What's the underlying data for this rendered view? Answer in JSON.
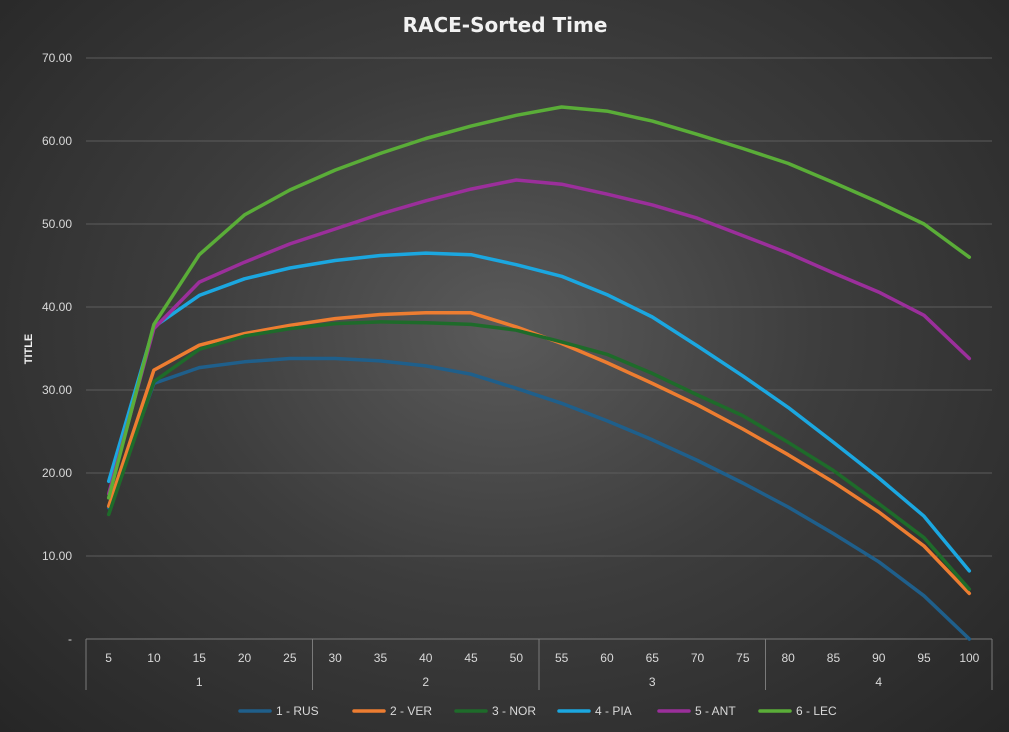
{
  "chart_data": {
    "type": "line",
    "title": "RACE-Sorted Time",
    "ylabel": "TITLE",
    "xlabel": "",
    "ylim": [
      0,
      70
    ],
    "yticks": [
      {
        "value": 0,
        "label": "-"
      },
      {
        "value": 10,
        "label": "10.00"
      },
      {
        "value": 20,
        "label": "20.00"
      },
      {
        "value": 30,
        "label": "30.00"
      },
      {
        "value": 40,
        "label": "40.00"
      },
      {
        "value": 50,
        "label": "50.00"
      },
      {
        "value": 60,
        "label": "60.00"
      },
      {
        "value": 70,
        "label": "70.00"
      }
    ],
    "grid": true,
    "legend_position": "bottom",
    "categories": [
      "5",
      "10",
      "15",
      "20",
      "25",
      "30",
      "35",
      "40",
      "45",
      "50",
      "55",
      "60",
      "65",
      "70",
      "75",
      "80",
      "85",
      "90",
      "95",
      "100"
    ],
    "groups": [
      {
        "label": "1",
        "count": 5
      },
      {
        "label": "2",
        "count": 5
      },
      {
        "label": "3",
        "count": 5
      },
      {
        "label": "4",
        "count": 5
      }
    ],
    "series": [
      {
        "name": "1 - RUS",
        "color": "#1f5f8b",
        "values": [
          15.8,
          30.8,
          32.7,
          33.4,
          33.8,
          33.8,
          33.5,
          32.9,
          31.9,
          30.2,
          28.4,
          26.3,
          24.0,
          21.5,
          18.8,
          15.9,
          12.7,
          9.3,
          5.2,
          0.0
        ]
      },
      {
        "name": "2 - VER",
        "color": "#ed7d31",
        "values": [
          16.0,
          32.4,
          35.4,
          36.8,
          37.8,
          38.6,
          39.1,
          39.3,
          39.3,
          37.6,
          35.6,
          33.3,
          30.8,
          28.2,
          25.3,
          22.2,
          18.9,
          15.3,
          11.2,
          5.5
        ]
      },
      {
        "name": "3 - NOR",
        "color": "#1e6b2a",
        "values": [
          15.0,
          31.0,
          34.9,
          36.5,
          37.4,
          38.0,
          38.2,
          38.1,
          37.9,
          37.2,
          35.8,
          34.3,
          32.0,
          29.4,
          26.9,
          23.7,
          20.3,
          16.3,
          12.2,
          6.0
        ]
      },
      {
        "name": "4 - PIA",
        "color": "#1ba7e0",
        "values": [
          19.0,
          37.6,
          41.4,
          43.4,
          44.7,
          45.6,
          46.2,
          46.5,
          46.3,
          45.1,
          43.7,
          41.5,
          38.8,
          35.3,
          31.7,
          27.9,
          23.7,
          19.4,
          14.8,
          8.2
        ]
      },
      {
        "name": "5 - ANT",
        "color": "#9b2f9b",
        "values": [
          17.5,
          37.4,
          43.0,
          45.4,
          47.6,
          49.4,
          51.2,
          52.8,
          54.2,
          55.3,
          54.8,
          53.6,
          52.3,
          50.7,
          48.6,
          46.5,
          44.1,
          41.8,
          39.0,
          33.8
        ]
      },
      {
        "name": "6 - LEC",
        "color": "#5aad38",
        "values": [
          17.0,
          37.9,
          46.3,
          51.1,
          54.1,
          56.5,
          58.5,
          60.3,
          61.8,
          63.1,
          64.1,
          63.6,
          62.4,
          60.8,
          59.1,
          57.3,
          55.0,
          52.6,
          50.0,
          46.0
        ]
      }
    ]
  }
}
